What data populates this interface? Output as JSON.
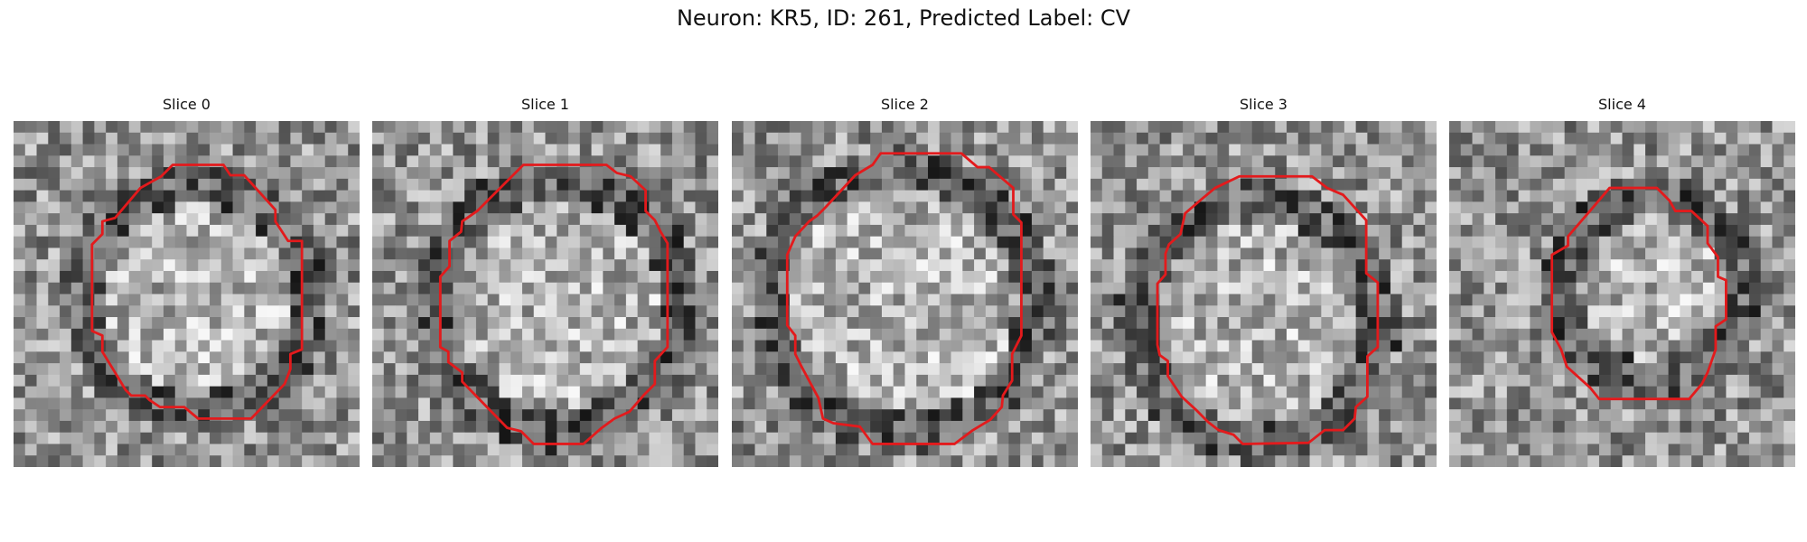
{
  "figure": {
    "title": "Neuron: KR5, ID: 261, Predicted Label: CV",
    "panels": [
      {
        "label": "Slice 0",
        "seed": 11,
        "contour": [
          [
            13.8,
            3.8
          ],
          [
            18.2,
            3.8
          ],
          [
            18.8,
            4.7
          ],
          [
            20.0,
            4.7
          ],
          [
            22.7,
            7.7
          ],
          [
            22.7,
            8.7
          ],
          [
            23.8,
            10.4
          ],
          [
            25.0,
            10.4
          ],
          [
            25.0,
            13.2
          ],
          [
            25.0,
            17.9
          ],
          [
            25.0,
            19.8
          ],
          [
            24.0,
            20.2
          ],
          [
            24.0,
            21.5
          ],
          [
            23.5,
            22.8
          ],
          [
            20.6,
            25.8
          ],
          [
            16.0,
            25.8
          ],
          [
            14.8,
            24.8
          ],
          [
            12.7,
            24.8
          ],
          [
            11.8,
            24.2
          ],
          [
            11.4,
            23.8
          ],
          [
            10.2,
            23.8
          ],
          [
            9.7,
            23.3
          ],
          [
            8.8,
            21.8
          ],
          [
            7.7,
            20.0
          ],
          [
            7.7,
            18.6
          ],
          [
            6.8,
            18.2
          ],
          [
            6.8,
            10.7
          ],
          [
            7.7,
            9.8
          ],
          [
            7.7,
            8.7
          ],
          [
            8.8,
            8.4
          ],
          [
            11.0,
            5.8
          ],
          [
            12.8,
            4.8
          ]
        ]
      },
      {
        "label": "Slice 1",
        "seed": 23,
        "contour": [
          [
            13.1,
            3.8
          ],
          [
            20.3,
            3.8
          ],
          [
            21.2,
            4.5
          ],
          [
            22.4,
            4.8
          ],
          [
            23.7,
            6.0
          ],
          [
            23.7,
            7.8
          ],
          [
            24.5,
            8.6
          ],
          [
            25.0,
            9.6
          ],
          [
            25.6,
            10.6
          ],
          [
            25.6,
            13.5
          ],
          [
            25.6,
            19.6
          ],
          [
            24.5,
            20.8
          ],
          [
            24.5,
            22.8
          ],
          [
            23.6,
            23.7
          ],
          [
            22.3,
            25.2
          ],
          [
            21.0,
            25.8
          ],
          [
            19.9,
            26.6
          ],
          [
            18.3,
            28.0
          ],
          [
            14.0,
            28.0
          ],
          [
            12.9,
            26.9
          ],
          [
            11.7,
            26.6
          ],
          [
            7.8,
            22.6
          ],
          [
            7.8,
            21.8
          ],
          [
            6.6,
            20.9
          ],
          [
            6.6,
            20.0
          ],
          [
            5.9,
            19.6
          ],
          [
            5.9,
            16.8
          ],
          [
            5.9,
            13.5
          ],
          [
            6.7,
            12.6
          ],
          [
            6.7,
            10.4
          ],
          [
            7.7,
            9.6
          ],
          [
            7.8,
            8.7
          ],
          [
            9.1,
            7.8
          ]
        ]
      },
      {
        "label": "Slice 2",
        "seed": 37,
        "contour": [
          [
            12.9,
            2.8
          ],
          [
            19.9,
            2.8
          ],
          [
            21.3,
            4.0
          ],
          [
            22.3,
            4.0
          ],
          [
            24.4,
            5.8
          ],
          [
            24.4,
            8.1
          ],
          [
            25.1,
            8.8
          ],
          [
            25.1,
            13.4
          ],
          [
            25.1,
            18.6
          ],
          [
            24.3,
            20.2
          ],
          [
            24.3,
            22.5
          ],
          [
            23.5,
            23.8
          ],
          [
            23.4,
            24.8
          ],
          [
            22.4,
            25.9
          ],
          [
            20.9,
            26.8
          ],
          [
            19.3,
            28.0
          ],
          [
            12.2,
            28.0
          ],
          [
            11.1,
            26.5
          ],
          [
            8.8,
            26.2
          ],
          [
            7.9,
            25.8
          ],
          [
            7.5,
            24.0
          ],
          [
            6.1,
            21.4
          ],
          [
            5.5,
            20.2
          ],
          [
            5.5,
            18.6
          ],
          [
            4.8,
            17.7
          ],
          [
            4.8,
            12.8
          ],
          [
            4.8,
            11.6
          ],
          [
            5.5,
            10.0
          ],
          [
            6.7,
            8.7
          ],
          [
            7.4,
            8.2
          ],
          [
            8.1,
            7.5
          ],
          [
            10.7,
            4.7
          ],
          [
            12.2,
            3.8
          ]
        ]
      },
      {
        "label": "Slice 3",
        "seed": 53,
        "contour": [
          [
            12.9,
            4.8
          ],
          [
            19.2,
            4.8
          ],
          [
            20.5,
            5.8
          ],
          [
            21.9,
            6.4
          ],
          [
            23.9,
            8.6
          ],
          [
            23.9,
            13.2
          ],
          [
            24.9,
            14.0
          ],
          [
            24.9,
            19.6
          ],
          [
            24.0,
            20.4
          ],
          [
            24.0,
            23.9
          ],
          [
            23.0,
            24.8
          ],
          [
            22.9,
            25.8
          ],
          [
            21.9,
            26.8
          ],
          [
            20.3,
            26.8
          ],
          [
            18.9,
            27.9
          ],
          [
            13.2,
            28.0
          ],
          [
            12.4,
            27.2
          ],
          [
            11.1,
            26.8
          ],
          [
            10.2,
            26.1
          ],
          [
            9.1,
            25.0
          ],
          [
            7.9,
            23.9
          ],
          [
            6.7,
            22.1
          ],
          [
            6.7,
            20.8
          ],
          [
            6.0,
            20.3
          ],
          [
            5.8,
            19.4
          ],
          [
            5.8,
            14.1
          ],
          [
            6.5,
            13.3
          ],
          [
            6.5,
            11.5
          ],
          [
            6.8,
            10.7
          ],
          [
            7.8,
            9.8
          ],
          [
            8.2,
            8.0
          ],
          [
            9.6,
            6.8
          ],
          [
            10.8,
            5.8
          ]
        ]
      },
      {
        "label": "Slice 4",
        "seed": 71,
        "contour": [
          [
            13.9,
            5.8
          ],
          [
            18.0,
            5.8
          ],
          [
            19.1,
            6.9
          ],
          [
            19.6,
            7.8
          ],
          [
            21.0,
            7.8
          ],
          [
            22.4,
            9.1
          ],
          [
            22.4,
            10.6
          ],
          [
            23.3,
            11.8
          ],
          [
            23.3,
            13.5
          ],
          [
            24.0,
            13.8
          ],
          [
            24.0,
            15.8
          ],
          [
            24.0,
            17.2
          ],
          [
            23.1,
            17.8
          ],
          [
            23.1,
            19.8
          ],
          [
            22.4,
            21.8
          ],
          [
            21.9,
            22.8
          ],
          [
            20.8,
            24.1
          ],
          [
            13.0,
            24.1
          ],
          [
            12.2,
            23.1
          ],
          [
            10.2,
            21.3
          ],
          [
            9.7,
            19.8
          ],
          [
            8.9,
            18.3
          ],
          [
            8.9,
            13.0
          ],
          [
            8.9,
            11.6
          ],
          [
            10.3,
            10.8
          ],
          [
            10.3,
            10.0
          ],
          [
            12.2,
            7.8
          ]
        ]
      }
    ]
  },
  "colors": {
    "contour": "#e31a1c",
    "background": "#ffffff"
  }
}
